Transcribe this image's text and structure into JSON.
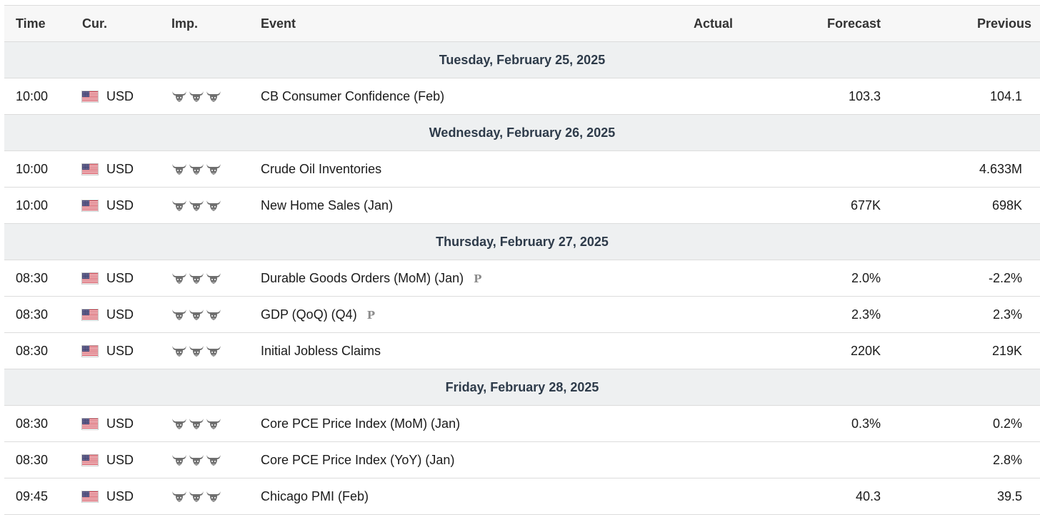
{
  "header": {
    "time": "Time",
    "currency": "Cur.",
    "importance": "Imp.",
    "event": "Event",
    "actual": "Actual",
    "forecast": "Forecast",
    "previous": "Previous"
  },
  "icons": {
    "flag": "us-flag-icon",
    "importance": "bull-icon",
    "preliminary": "preliminary-icon"
  },
  "colors": {
    "date_row_bg": "#eef0f1",
    "bull": "#6f6f6f",
    "prelim": "#8c8c8c"
  },
  "days": [
    {
      "date": "Tuesday, February 25, 2025",
      "events": [
        {
          "time": "10:00",
          "currency": "USD",
          "importance": 3,
          "name": "CB Consumer Confidence (Feb)",
          "preliminary": "",
          "actual": "",
          "forecast": "103.3",
          "previous": "104.1"
        }
      ]
    },
    {
      "date": "Wednesday, February 26, 2025",
      "events": [
        {
          "time": "10:00",
          "currency": "USD",
          "importance": 3,
          "name": "Crude Oil Inventories",
          "preliminary": "",
          "actual": "",
          "forecast": "",
          "previous": "4.633M"
        },
        {
          "time": "10:00",
          "currency": "USD",
          "importance": 3,
          "name": "New Home Sales (Jan)",
          "preliminary": "",
          "actual": "",
          "forecast": "677K",
          "previous": "698K"
        }
      ]
    },
    {
      "date": "Thursday, February 27, 2025",
      "events": [
        {
          "time": "08:30",
          "currency": "USD",
          "importance": 3,
          "name": "Durable Goods Orders (MoM) (Jan)",
          "preliminary": "P",
          "actual": "",
          "forecast": "2.0%",
          "previous": "-2.2%"
        },
        {
          "time": "08:30",
          "currency": "USD",
          "importance": 3,
          "name": "GDP (QoQ) (Q4)",
          "preliminary": "P",
          "actual": "",
          "forecast": "2.3%",
          "previous": "2.3%"
        },
        {
          "time": "08:30",
          "currency": "USD",
          "importance": 3,
          "name": "Initial Jobless Claims",
          "preliminary": "",
          "actual": "",
          "forecast": "220K",
          "previous": "219K"
        }
      ]
    },
    {
      "date": "Friday, February 28, 2025",
      "events": [
        {
          "time": "08:30",
          "currency": "USD",
          "importance": 3,
          "name": "Core PCE Price Index (MoM) (Jan)",
          "preliminary": "",
          "actual": "",
          "forecast": "0.3%",
          "previous": "0.2%"
        },
        {
          "time": "08:30",
          "currency": "USD",
          "importance": 3,
          "name": "Core PCE Price Index (YoY) (Jan)",
          "preliminary": "",
          "actual": "",
          "forecast": "",
          "previous": "2.8%"
        },
        {
          "time": "09:45",
          "currency": "USD",
          "importance": 3,
          "name": "Chicago PMI (Feb)",
          "preliminary": "",
          "actual": "",
          "forecast": "40.3",
          "previous": "39.5"
        }
      ]
    }
  ]
}
